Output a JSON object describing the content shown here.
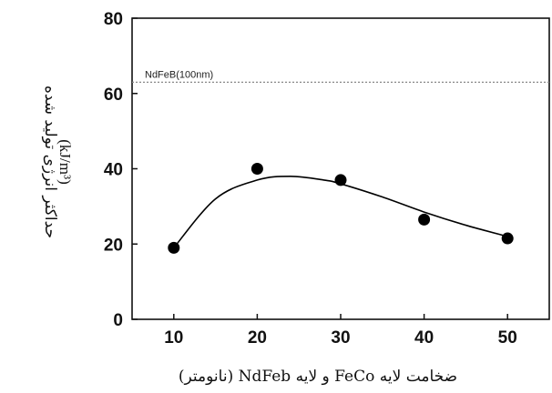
{
  "chart_data": {
    "type": "scatter",
    "x": [
      10,
      20,
      30,
      40,
      50
    ],
    "y": [
      19,
      40,
      37,
      26.5,
      21.5
    ],
    "fit_curve": {
      "x": [
        10,
        15,
        20,
        24,
        28,
        30,
        35,
        40,
        45,
        50
      ],
      "y": [
        19,
        32,
        37,
        38,
        37,
        36,
        32.5,
        28.5,
        25,
        22
      ]
    },
    "x_ticks": [
      "10",
      "20",
      "30",
      "40",
      "50"
    ],
    "y_ticks": [
      "0",
      "20",
      "40",
      "60",
      "80"
    ],
    "xlim": [
      5,
      55
    ],
    "ylim": [
      0,
      80
    ],
    "reference_line": {
      "y": 63,
      "label": "NdFeB(100nm)"
    },
    "xlabel": "ضخامت لایه FeCo و لایه NdFeb (نانومتر)",
    "ylabel_line1": "حداکثر انرژی تولید شده",
    "ylabel_line2": "(kJ/m³)",
    "grid": false,
    "legend": "none",
    "colors": {
      "marker": "#000000",
      "line": "#000000",
      "reference": "#888888"
    }
  }
}
